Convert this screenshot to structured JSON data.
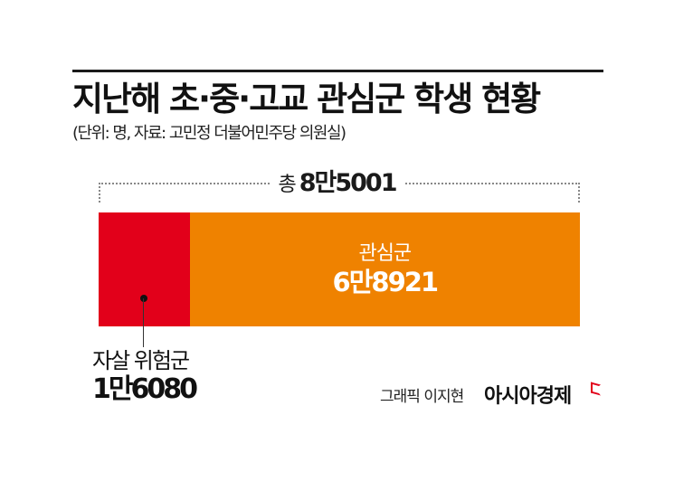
{
  "header": {
    "title": "지난해 초·중·고교 관심군 학생 현황",
    "subtitle": "(단위: 명, 자료: 고민정 더불어민주당 의원실)"
  },
  "total": {
    "label": "총",
    "value": "8만5001"
  },
  "segments": [
    {
      "name": "자살 위험군",
      "value_text": "1만6080",
      "value": 16080,
      "color": "#e2001a"
    },
    {
      "name": "관심군",
      "value_text": "6만8921",
      "value": 68921,
      "color": "#ef8200"
    }
  ],
  "footer": {
    "credit": "그래픽 이지현",
    "brand": "아시아경제"
  },
  "chart_data": {
    "type": "bar",
    "orientation": "horizontal-stacked",
    "title": "지난해 초·중·고교 관심군 학생 현황",
    "subtitle": "(단위: 명, 자료: 고민정 더불어민주당 의원실)",
    "categories": [
      "자살 위험군",
      "관심군"
    ],
    "values": [
      16080,
      68921
    ],
    "total": 85001,
    "total_label": "총 8만5001",
    "unit": "명",
    "colors": [
      "#e2001a",
      "#ef8200"
    ],
    "legend": "none (inline labels)",
    "grid": false
  }
}
